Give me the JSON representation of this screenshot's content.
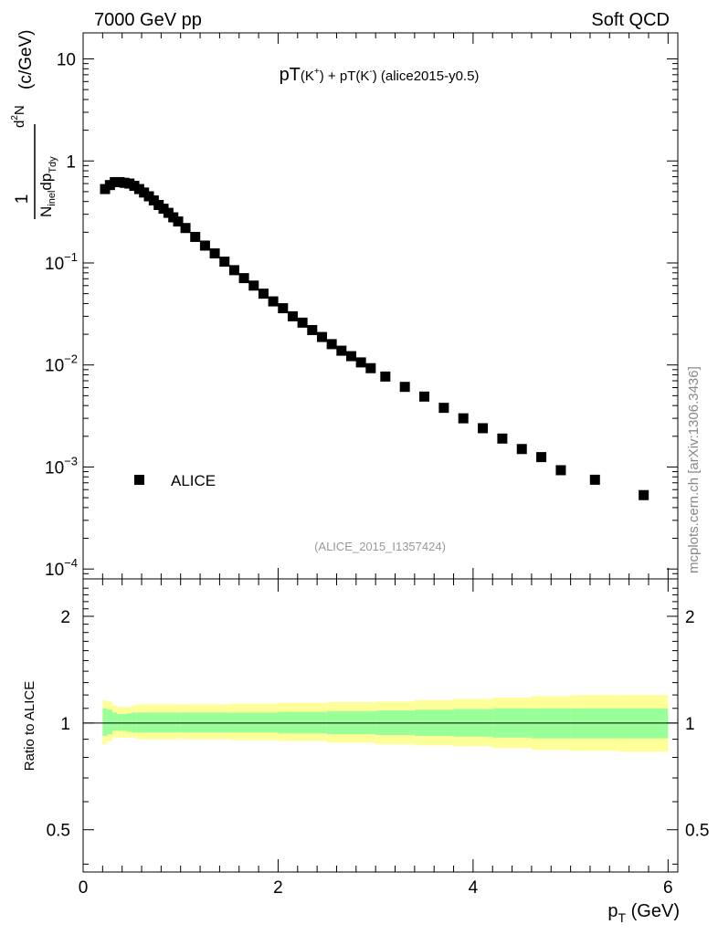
{
  "header": {
    "left": "7000 GeV pp",
    "right": "Soft QCD"
  },
  "side_label": "mcplots.cern.ch [arXiv:1306.3436]",
  "chart_data": [
    {
      "type": "scatter",
      "panel": "main",
      "title": {
        "main": "pT",
        "sub1": "(K",
        "sup1": "+",
        "sub2": ") + pT(K",
        "sup2": "-",
        "sub3": ")",
        "tag": " (alice2015-y0.5)"
      },
      "analysis_id": "(ALICE_2015_I1357424)",
      "ylabel": {
        "num_one": "1",
        "num_d": "d",
        "num_two": "2",
        "num_n": "N",
        "den_n": "N",
        "den_inel": "inel",
        "den_dp": "dp",
        "den_tdy": "Tdy",
        "unit": "(c/GeV)"
      },
      "y_scale": "log",
      "ylim": [
        8e-05,
        18
      ],
      "xlim": [
        0,
        6.1
      ],
      "y_ticks": [
        {
          "value": 10,
          "base": "10",
          "exp": ""
        },
        {
          "value": 1,
          "base": "1",
          "exp": ""
        },
        {
          "value": 0.1,
          "base": "10",
          "exp": "−1"
        },
        {
          "value": 0.01,
          "base": "10",
          "exp": "−2"
        },
        {
          "value": 0.001,
          "base": "10",
          "exp": "−3"
        },
        {
          "value": 0.0001,
          "base": "10",
          "exp": "−4"
        }
      ],
      "legend": {
        "label": "ALICE",
        "placement": "lower-left"
      },
      "series": [
        {
          "name": "ALICE",
          "marker": "square",
          "x": [
            0.225,
            0.275,
            0.325,
            0.375,
            0.425,
            0.475,
            0.525,
            0.575,
            0.625,
            0.675,
            0.725,
            0.775,
            0.825,
            0.875,
            0.925,
            0.975,
            1.05,
            1.15,
            1.25,
            1.35,
            1.45,
            1.55,
            1.65,
            1.75,
            1.85,
            1.95,
            2.05,
            2.15,
            2.25,
            2.35,
            2.45,
            2.55,
            2.65,
            2.75,
            2.85,
            2.95,
            3.1,
            3.3,
            3.5,
            3.7,
            3.9,
            4.1,
            4.3,
            4.5,
            4.7,
            4.9,
            5.25,
            5.75
          ],
          "values": [
            0.53,
            0.58,
            0.62,
            0.62,
            0.61,
            0.6,
            0.57,
            0.53,
            0.49,
            0.45,
            0.41,
            0.37,
            0.34,
            0.31,
            0.28,
            0.255,
            0.22,
            0.18,
            0.148,
            0.124,
            0.103,
            0.085,
            0.071,
            0.06,
            0.05,
            0.042,
            0.036,
            0.03,
            0.026,
            0.022,
            0.0188,
            0.016,
            0.0138,
            0.0122,
            0.0106,
            0.0093,
            0.0077,
            0.0061,
            0.0049,
            0.0038,
            0.003,
            0.0024,
            0.0019,
            0.0015,
            0.00125,
            0.00093,
            0.00075,
            0.00053
          ]
        }
      ]
    },
    {
      "type": "area",
      "panel": "ratio",
      "ylabel": "Ratio to ALICE",
      "xlabel": {
        "p": "p",
        "sub": "T",
        "unit": " (GeV)"
      },
      "y_scale": "log",
      "ylim": [
        0.38,
        2.55
      ],
      "xlim": [
        0,
        6.1
      ],
      "y_ticks": [
        {
          "value": 2,
          "label": "2"
        },
        {
          "value": 1,
          "label": "1"
        },
        {
          "value": 0.5,
          "label": "0.5"
        }
      ],
      "x_ticks": [
        {
          "value": 0,
          "label": "0"
        },
        {
          "value": 2,
          "label": "2"
        },
        {
          "value": 4,
          "label": "4"
        },
        {
          "value": 6,
          "label": "6"
        }
      ],
      "reference_line": 1,
      "bands": {
        "x_edges": [
          0.2,
          0.25,
          0.3,
          0.35,
          0.4,
          0.45,
          0.5,
          0.55,
          0.6,
          1.0,
          1.5,
          2.0,
          2.5,
          3.0,
          3.4,
          3.8,
          4.2,
          4.6,
          5.0,
          5.5,
          6.0
        ],
        "stat_syst_outer": [
          {
            "hi": 1.16,
            "lo": 0.87
          },
          {
            "hi": 1.15,
            "lo": 0.89
          },
          {
            "hi": 1.12,
            "lo": 0.91
          },
          {
            "hi": 1.11,
            "lo": 0.91
          },
          {
            "hi": 1.11,
            "lo": 0.91
          },
          {
            "hi": 1.11,
            "lo": 0.91
          },
          {
            "hi": 1.12,
            "lo": 0.91
          },
          {
            "hi": 1.13,
            "lo": 0.9
          },
          {
            "hi": 1.13,
            "lo": 0.9
          },
          {
            "hi": 1.13,
            "lo": 0.9
          },
          {
            "hi": 1.135,
            "lo": 0.895
          },
          {
            "hi": 1.14,
            "lo": 0.89
          },
          {
            "hi": 1.145,
            "lo": 0.88
          },
          {
            "hi": 1.15,
            "lo": 0.87
          },
          {
            "hi": 1.16,
            "lo": 0.865
          },
          {
            "hi": 1.17,
            "lo": 0.86
          },
          {
            "hi": 1.18,
            "lo": 0.85
          },
          {
            "hi": 1.19,
            "lo": 0.84
          },
          {
            "hi": 1.2,
            "lo": 0.835
          },
          {
            "hi": 1.2,
            "lo": 0.83
          }
        ],
        "stat_inner": [
          {
            "hi": 1.1,
            "lo": 0.92
          },
          {
            "hi": 1.09,
            "lo": 0.93
          },
          {
            "hi": 1.07,
            "lo": 0.95
          },
          {
            "hi": 1.06,
            "lo": 0.95
          },
          {
            "hi": 1.06,
            "lo": 0.95
          },
          {
            "hi": 1.065,
            "lo": 0.945
          },
          {
            "hi": 1.07,
            "lo": 0.94
          },
          {
            "hi": 1.07,
            "lo": 0.94
          },
          {
            "hi": 1.07,
            "lo": 0.94
          },
          {
            "hi": 1.07,
            "lo": 0.94
          },
          {
            "hi": 1.07,
            "lo": 0.94
          },
          {
            "hi": 1.075,
            "lo": 0.935
          },
          {
            "hi": 1.08,
            "lo": 0.93
          },
          {
            "hi": 1.085,
            "lo": 0.925
          },
          {
            "hi": 1.09,
            "lo": 0.92
          },
          {
            "hi": 1.095,
            "lo": 0.915
          },
          {
            "hi": 1.1,
            "lo": 0.91
          },
          {
            "hi": 1.1,
            "lo": 0.905
          },
          {
            "hi": 1.1,
            "lo": 0.905
          },
          {
            "hi": 1.1,
            "lo": 0.905
          }
        ]
      },
      "colors": {
        "outer": "#ffff99",
        "inner": "#99ff99",
        "line": "#000000"
      }
    }
  ]
}
